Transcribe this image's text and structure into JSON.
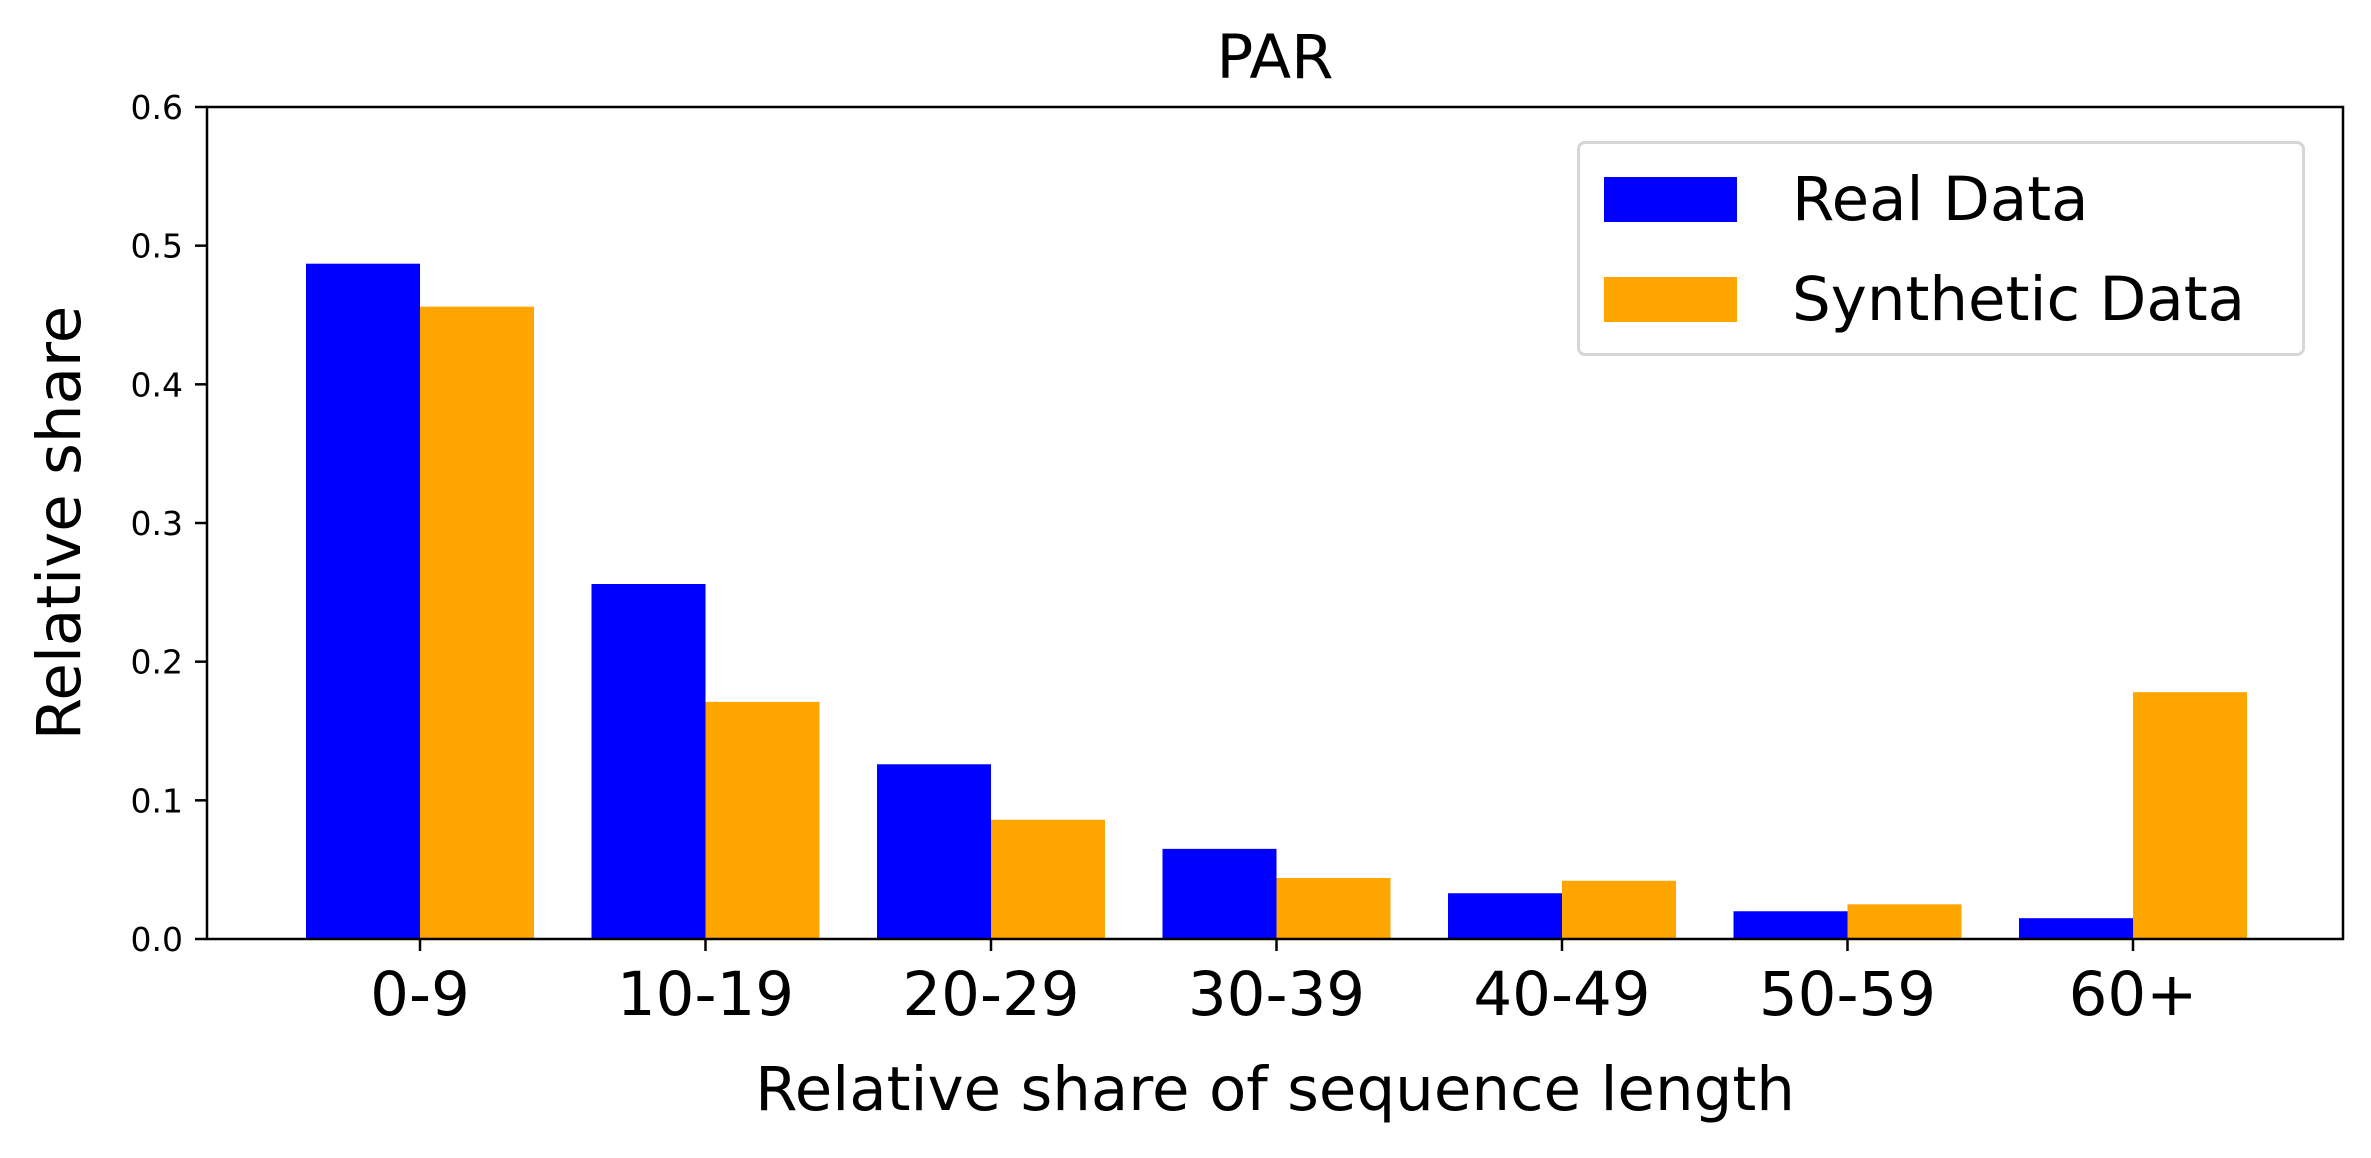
{
  "chart_data": {
    "type": "bar",
    "title": "PAR",
    "xlabel": "Relative share of sequence length",
    "ylabel": "Relative share",
    "categories": [
      "0-9",
      "10-19",
      "20-29",
      "30-39",
      "40-49",
      "50-59",
      "60+"
    ],
    "series": [
      {
        "name": "Real Data",
        "color": "#0000ff",
        "values": [
          0.487,
          0.256,
          0.126,
          0.065,
          0.033,
          0.02,
          0.015
        ]
      },
      {
        "name": "Synthetic Data",
        "color": "#ffa500",
        "values": [
          0.456,
          0.171,
          0.086,
          0.044,
          0.042,
          0.025,
          0.178
        ]
      }
    ],
    "ylim": [
      0,
      0.6
    ],
    "yticks": [
      "0.0",
      "0.1",
      "0.2",
      "0.3",
      "0.4",
      "0.5",
      "0.6"
    ],
    "grid": false,
    "legend_position": "top-right"
  }
}
